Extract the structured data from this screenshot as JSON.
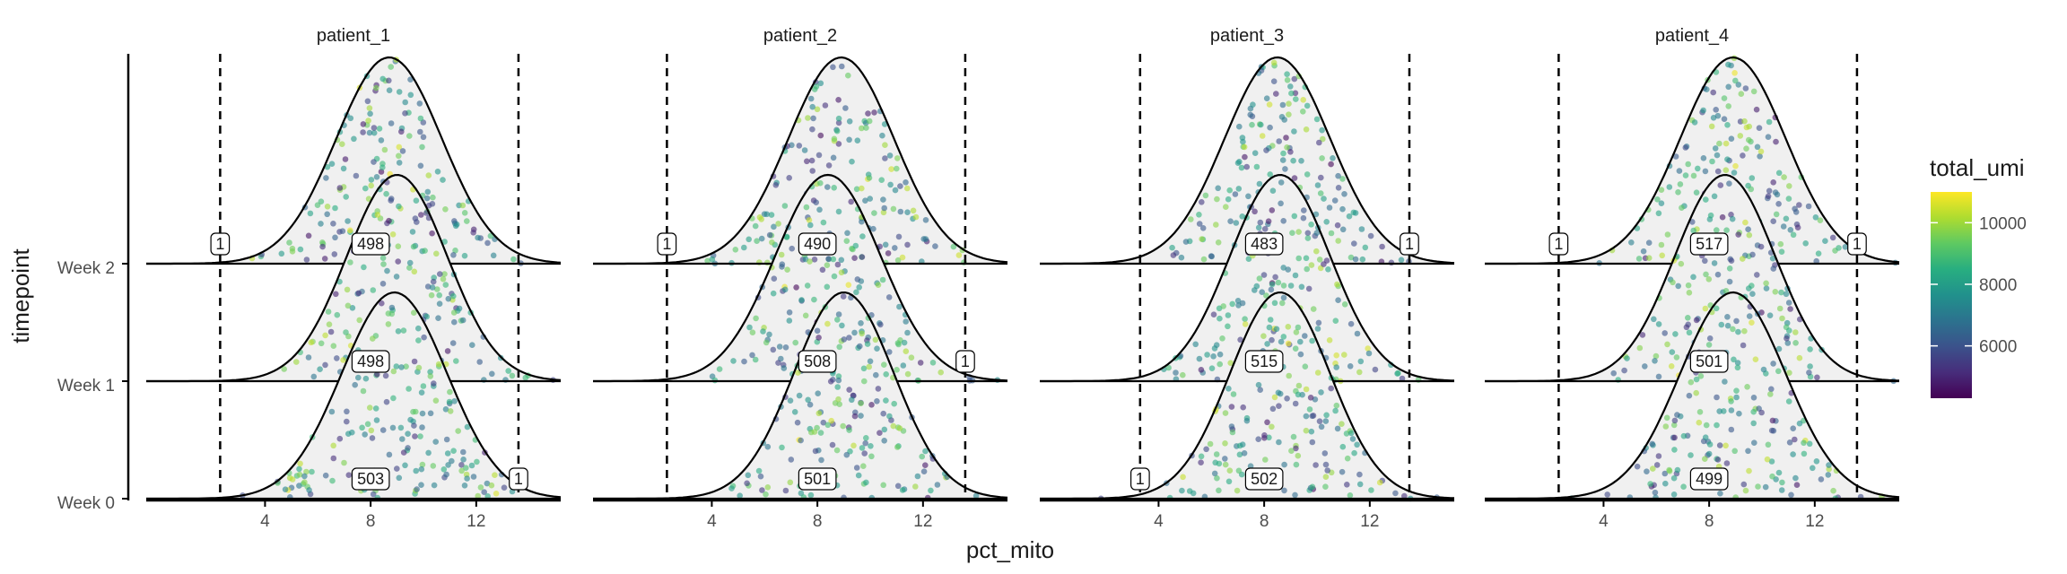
{
  "chart_data": {
    "type": "ridgeline",
    "xlabel": "pct_mito",
    "ylabel": "timepoint",
    "x_ticks": [
      4,
      8,
      12
    ],
    "xlim": [
      -0.5,
      15.2
    ],
    "timepoints": [
      "Week 0",
      "Week 1",
      "Week 2"
    ],
    "legend": {
      "title": "total_umi",
      "ticks": [
        6000,
        8000,
        10000
      ],
      "range": [
        4300,
        11000
      ],
      "position": "right",
      "colormap": "viridis"
    },
    "facets": [
      {
        "name": "patient_1",
        "vlines": [
          2.3,
          13.6
        ],
        "ridges": [
          {
            "timepoint": "Week 0",
            "mean": 8.9,
            "sd": 2.0,
            "counts": [
              {
                "x": 8.0,
                "label": "503"
              },
              {
                "x": 13.6,
                "label": "1"
              }
            ]
          },
          {
            "timepoint": "Week 1",
            "mean": 9.0,
            "sd": 1.9,
            "counts": [
              {
                "x": 8.0,
                "label": "498"
              }
            ]
          },
          {
            "timepoint": "Week 2",
            "mean": 8.7,
            "sd": 2.0,
            "counts": [
              {
                "x": 2.3,
                "label": "1"
              },
              {
                "x": 8.0,
                "label": "498"
              }
            ]
          }
        ]
      },
      {
        "name": "patient_2",
        "vlines": [
          2.3,
          13.6
        ],
        "ridges": [
          {
            "timepoint": "Week 0",
            "mean": 9.0,
            "sd": 1.9,
            "counts": [
              {
                "x": 8.0,
                "label": "501"
              }
            ]
          },
          {
            "timepoint": "Week 1",
            "mean": 8.4,
            "sd": 2.0,
            "counts": [
              {
                "x": 8.0,
                "label": "508"
              },
              {
                "x": 13.6,
                "label": "1"
              }
            ]
          },
          {
            "timepoint": "Week 2",
            "mean": 8.9,
            "sd": 2.0,
            "counts": [
              {
                "x": 2.3,
                "label": "1"
              },
              {
                "x": 8.0,
                "label": "490"
              }
            ]
          }
        ]
      },
      {
        "name": "patient_3",
        "vlines": [
          3.3,
          13.5
        ],
        "ridges": [
          {
            "timepoint": "Week 0",
            "mean": 8.6,
            "sd": 1.9,
            "counts": [
              {
                "x": 3.3,
                "label": "1"
              },
              {
                "x": 8.0,
                "label": "502"
              }
            ]
          },
          {
            "timepoint": "Week 1",
            "mean": 8.6,
            "sd": 1.9,
            "counts": [
              {
                "x": 8.0,
                "label": "515"
              }
            ]
          },
          {
            "timepoint": "Week 2",
            "mean": 8.5,
            "sd": 2.0,
            "counts": [
              {
                "x": 8.0,
                "label": "483"
              },
              {
                "x": 13.5,
                "label": "1"
              }
            ]
          }
        ]
      },
      {
        "name": "patient_4",
        "vlines": [
          2.3,
          13.6
        ],
        "ridges": [
          {
            "timepoint": "Week 0",
            "mean": 8.9,
            "sd": 2.0,
            "counts": [
              {
                "x": 8.0,
                "label": "499"
              }
            ]
          },
          {
            "timepoint": "Week 1",
            "mean": 8.6,
            "sd": 1.9,
            "counts": [
              {
                "x": 8.0,
                "label": "501"
              }
            ]
          },
          {
            "timepoint": "Week 2",
            "mean": 8.9,
            "sd": 2.0,
            "counts": [
              {
                "x": 2.3,
                "label": "1"
              },
              {
                "x": 8.0,
                "label": "517"
              },
              {
                "x": 13.6,
                "label": "1"
              }
            ]
          }
        ]
      }
    ]
  },
  "colors": {
    "ridge_fill": "#f0f0f0",
    "ridge_stroke": "#000000",
    "vline": "#000000",
    "axis": "#000000"
  }
}
